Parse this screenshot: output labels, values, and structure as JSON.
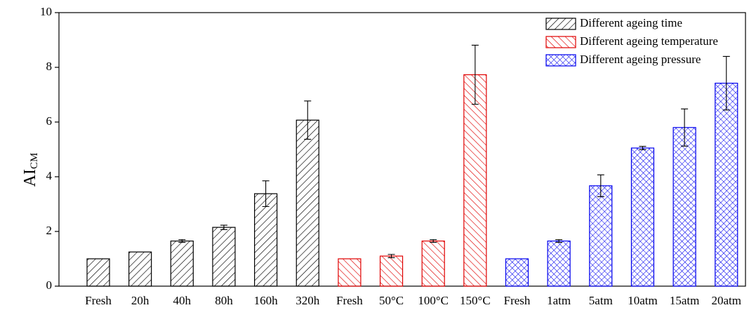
{
  "chart_data": {
    "type": "bar",
    "ylabel": "AI",
    "ylabel_sub": "CM",
    "categories": [
      "Fresh",
      "20h",
      "40h",
      "80h",
      "160h",
      "320h",
      "Fresh",
      "50°C",
      "100°C",
      "150°C",
      "Fresh",
      "1atm",
      "5atm",
      "10atm",
      "15atm",
      "20atm"
    ],
    "series": [
      {
        "name": "Different ageing time",
        "color": "#000000",
        "hatch": "diagonal",
        "values": [
          1.0,
          1.25,
          1.65,
          2.15,
          3.38,
          6.07,
          null,
          null,
          null,
          null,
          null,
          null,
          null,
          null,
          null,
          null
        ],
        "errors": [
          0,
          0,
          0.05,
          0.08,
          0.47,
          0.7,
          null,
          null,
          null,
          null,
          null,
          null,
          null,
          null,
          null,
          null
        ]
      },
      {
        "name": "Different ageing temperature",
        "color": "#e00000",
        "hatch": "back-diagonal",
        "values": [
          null,
          null,
          null,
          null,
          null,
          null,
          1.0,
          1.1,
          1.65,
          7.73,
          null,
          null,
          null,
          null,
          null,
          null
        ],
        "errors": [
          null,
          null,
          null,
          null,
          null,
          null,
          0,
          0.06,
          0.05,
          1.08,
          null,
          null,
          null,
          null,
          null,
          null
        ]
      },
      {
        "name": "Different ageing pressure",
        "color": "#0000ee",
        "hatch": "cross",
        "values": [
          null,
          null,
          null,
          null,
          null,
          null,
          null,
          null,
          null,
          null,
          1.0,
          1.65,
          3.67,
          5.05,
          5.8,
          7.42
        ],
        "errors": [
          null,
          null,
          null,
          null,
          null,
          null,
          null,
          null,
          null,
          null,
          0,
          0.05,
          0.4,
          0.06,
          0.68,
          0.98
        ]
      }
    ],
    "ylim": [
      0,
      10
    ],
    "yticks": [
      0,
      2,
      4,
      6,
      8,
      10
    ],
    "legend": "upper-right"
  }
}
